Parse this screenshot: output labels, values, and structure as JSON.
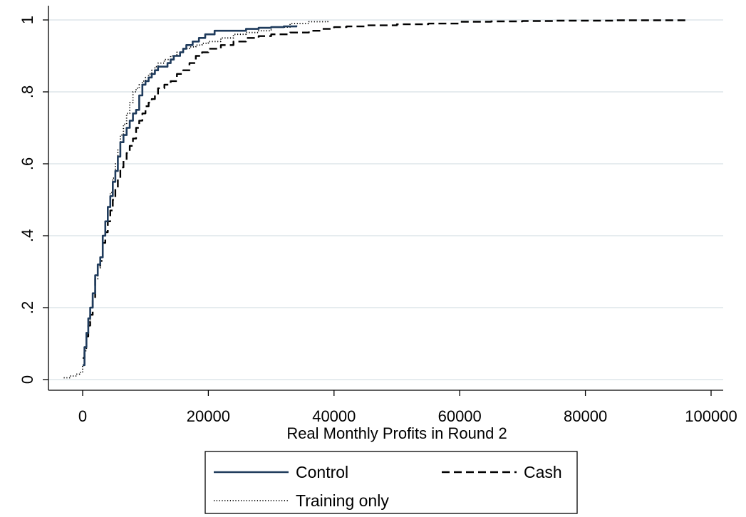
{
  "chart_data": {
    "type": "line",
    "title": "",
    "xlabel": "Real Monthly Profits in Round 2",
    "ylabel": "",
    "xlim": [
      -4000,
      101000
    ],
    "ylim": [
      0,
      1
    ],
    "xticks": [
      0,
      20000,
      40000,
      60000,
      80000,
      100000
    ],
    "xtick_labels": [
      "0",
      "20000",
      "40000",
      "60000",
      "80000",
      "100000"
    ],
    "yticks": [
      0,
      0.2,
      0.4,
      0.6,
      0.8,
      1
    ],
    "ytick_labels": [
      "0",
      ".2",
      ".4",
      ".6",
      ".8",
      "1"
    ],
    "grid": "horizontal",
    "legend_position": "bottom",
    "series": [
      {
        "name": "Control",
        "color": "#1f3b5c",
        "style": "solid",
        "x": [
          0,
          300,
          600,
          900,
          1200,
          1600,
          2000,
          2400,
          2800,
          3200,
          3600,
          4000,
          4400,
          4800,
          5200,
          5600,
          6000,
          6500,
          7000,
          7500,
          8000,
          8500,
          9000,
          9500,
          10000,
          10500,
          11000,
          11500,
          12000,
          12500,
          13000,
          13500,
          14000,
          14500,
          15000,
          15500,
          16000,
          16500,
          17000,
          17500,
          18000,
          18500,
          19000,
          19500,
          20000,
          21000,
          22000,
          23000,
          24000,
          26000,
          28000,
          30000,
          32000,
          34000
        ],
        "y": [
          0.04,
          0.09,
          0.13,
          0.17,
          0.2,
          0.24,
          0.29,
          0.32,
          0.34,
          0.4,
          0.44,
          0.48,
          0.51,
          0.55,
          0.58,
          0.62,
          0.66,
          0.68,
          0.7,
          0.72,
          0.74,
          0.75,
          0.79,
          0.82,
          0.83,
          0.84,
          0.85,
          0.86,
          0.87,
          0.87,
          0.87,
          0.88,
          0.89,
          0.9,
          0.9,
          0.91,
          0.92,
          0.93,
          0.93,
          0.94,
          0.94,
          0.95,
          0.95,
          0.96,
          0.96,
          0.97,
          0.97,
          0.97,
          0.97,
          0.975,
          0.978,
          0.98,
          0.982,
          0.985
        ]
      },
      {
        "name": "Cash",
        "color": "#000000",
        "style": "dashed",
        "x": [
          0,
          300,
          600,
          900,
          1200,
          1600,
          2000,
          2400,
          2800,
          3200,
          3600,
          4000,
          4400,
          4800,
          5200,
          5600,
          6000,
          6500,
          7000,
          7500,
          8000,
          8500,
          9000,
          9500,
          10000,
          10500,
          11000,
          11500,
          12000,
          13000,
          14000,
          15000,
          16000,
          17000,
          18000,
          19000,
          20000,
          22000,
          24000,
          26000,
          28000,
          30000,
          33000,
          36000,
          38000,
          40000,
          42000,
          45000,
          50000,
          55000,
          60000,
          65000,
          70000,
          75000,
          80000,
          85000,
          90000,
          96000
        ],
        "y": [
          0.06,
          0.09,
          0.12,
          0.15,
          0.18,
          0.22,
          0.28,
          0.31,
          0.33,
          0.38,
          0.41,
          0.44,
          0.47,
          0.5,
          0.53,
          0.56,
          0.59,
          0.61,
          0.63,
          0.65,
          0.67,
          0.7,
          0.72,
          0.74,
          0.76,
          0.77,
          0.78,
          0.79,
          0.81,
          0.82,
          0.83,
          0.85,
          0.86,
          0.88,
          0.9,
          0.91,
          0.92,
          0.93,
          0.94,
          0.95,
          0.955,
          0.96,
          0.965,
          0.97,
          0.975,
          0.98,
          0.982,
          0.985,
          0.988,
          0.99,
          0.995,
          0.996,
          0.997,
          0.998,
          0.998,
          0.999,
          0.999,
          1.0
        ]
      },
      {
        "name": "Training only",
        "color": "#000000",
        "style": "dotted",
        "x": [
          -3000,
          -2000,
          -1000,
          -500,
          0,
          300,
          600,
          900,
          1200,
          1600,
          2000,
          2400,
          2800,
          3200,
          3600,
          4000,
          4400,
          4800,
          5200,
          5600,
          6000,
          6500,
          7000,
          7500,
          8000,
          8500,
          9000,
          9500,
          10000,
          10500,
          11000,
          11500,
          12000,
          13000,
          14000,
          15000,
          16000,
          17000,
          18000,
          19000,
          20000,
          22000,
          24000,
          26000,
          28000,
          30000,
          33000,
          36000,
          39000
        ],
        "y": [
          0.005,
          0.01,
          0.015,
          0.02,
          0.04,
          0.08,
          0.12,
          0.16,
          0.2,
          0.24,
          0.28,
          0.31,
          0.34,
          0.4,
          0.44,
          0.48,
          0.52,
          0.56,
          0.6,
          0.64,
          0.68,
          0.71,
          0.74,
          0.77,
          0.8,
          0.81,
          0.82,
          0.83,
          0.84,
          0.85,
          0.86,
          0.87,
          0.88,
          0.89,
          0.9,
          0.91,
          0.92,
          0.925,
          0.93,
          0.935,
          0.94,
          0.95,
          0.96,
          0.965,
          0.97,
          0.98,
          0.99,
          0.995,
          0.997
        ]
      }
    ]
  }
}
